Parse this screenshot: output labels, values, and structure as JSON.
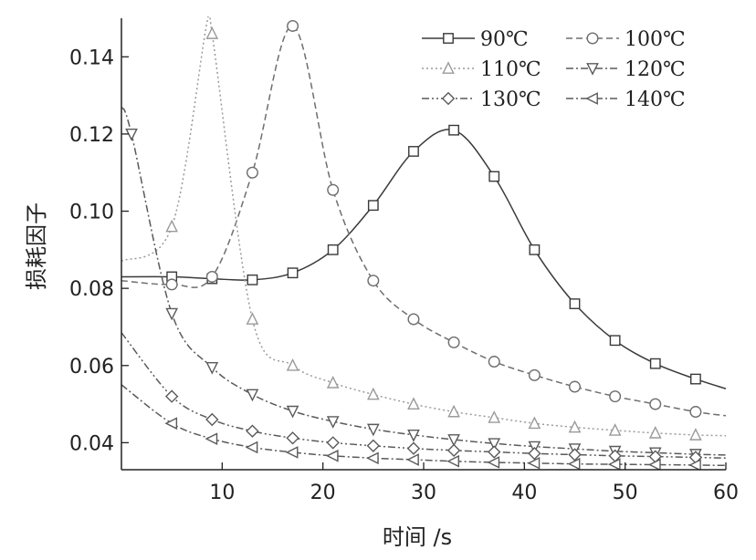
{
  "chart_data": {
    "type": "line",
    "xlabel": "时间 /s",
    "ylabel": "损耗因子",
    "xlim": [
      0,
      60
    ],
    "ylim": [
      0.033,
      0.15
    ],
    "xticks": [
      10,
      20,
      30,
      40,
      50,
      60
    ],
    "yticks": [
      0.04,
      0.06,
      0.08,
      0.1,
      0.12,
      0.14
    ],
    "ytick_labels": [
      "0.04",
      "0.06",
      "0.08",
      "0.10",
      "0.12",
      "0.14"
    ],
    "grid": false,
    "legend": "top-right",
    "colors": {
      "s90": "#3a3a3a",
      "s100": "#6e6e6e",
      "s110": "#9a9a9a",
      "s120": "#5a5a5a",
      "s130": "#5a5a5a",
      "s140": "#5a5a5a"
    },
    "series": [
      {
        "name": "90℃",
        "marker": "square",
        "dash": "solid",
        "x": [
          0,
          5,
          9,
          13,
          17,
          21,
          25,
          29,
          33,
          37,
          41,
          45,
          49,
          53,
          57,
          60
        ],
        "y": [
          0.083,
          0.083,
          0.0825,
          0.0822,
          0.084,
          0.09,
          0.1015,
          0.1155,
          0.121,
          0.109,
          0.09,
          0.076,
          0.0665,
          0.0605,
          0.0565,
          0.054
        ]
      },
      {
        "name": "100℃",
        "marker": "circle",
        "dash": "dashed",
        "x": [
          0,
          5,
          9,
          13,
          17,
          21,
          25,
          29,
          33,
          37,
          41,
          45,
          49,
          53,
          57,
          60
        ],
        "y": [
          0.082,
          0.081,
          0.083,
          0.11,
          0.148,
          0.1055,
          0.082,
          0.072,
          0.066,
          0.061,
          0.0575,
          0.0545,
          0.052,
          0.05,
          0.048,
          0.047
        ]
      },
      {
        "name": "110℃",
        "marker": "triangle-up",
        "dash": "dotted",
        "x": [
          0,
          5,
          8.5,
          9,
          13,
          17,
          21,
          25,
          29,
          33,
          37,
          41,
          45,
          49,
          53,
          57,
          60
        ],
        "y": [
          0.087,
          0.096,
          0.149,
          0.146,
          0.072,
          0.06,
          0.0555,
          0.0525,
          0.05,
          0.048,
          0.0465,
          0.045,
          0.044,
          0.0432,
          0.0425,
          0.042,
          0.0418
        ]
      },
      {
        "name": "120℃",
        "marker": "triangle-down",
        "dash": "dashdot",
        "x": [
          0,
          1,
          5,
          9,
          13,
          17,
          21,
          25,
          29,
          33,
          37,
          41,
          45,
          49,
          53,
          57,
          60
        ],
        "y": [
          0.127,
          0.12,
          0.0735,
          0.0595,
          0.0525,
          0.0482,
          0.0455,
          0.0435,
          0.042,
          0.0408,
          0.0398,
          0.039,
          0.0384,
          0.0378,
          0.0374,
          0.037,
          0.0368
        ]
      },
      {
        "name": "130℃",
        "marker": "diamond",
        "dash": "dashdotdot",
        "x": [
          0,
          5,
          9,
          13,
          17,
          21,
          25,
          29,
          33,
          37,
          41,
          45,
          49,
          53,
          57,
          60
        ],
        "y": [
          0.0685,
          0.052,
          0.046,
          0.043,
          0.0412,
          0.04,
          0.0392,
          0.0385,
          0.038,
          0.0376,
          0.0372,
          0.0369,
          0.0366,
          0.0364,
          0.0362,
          0.036
        ]
      },
      {
        "name": "140℃",
        "marker": "triangle-left",
        "dash": "dashdot",
        "x": [
          0,
          5,
          9,
          13,
          17,
          21,
          25,
          29,
          33,
          37,
          41,
          45,
          49,
          53,
          57,
          60
        ],
        "y": [
          0.055,
          0.045,
          0.041,
          0.0388,
          0.0375,
          0.0366,
          0.036,
          0.0356,
          0.0352,
          0.0349,
          0.0347,
          0.0345,
          0.0344,
          0.0343,
          0.0342,
          0.0341
        ]
      }
    ]
  }
}
